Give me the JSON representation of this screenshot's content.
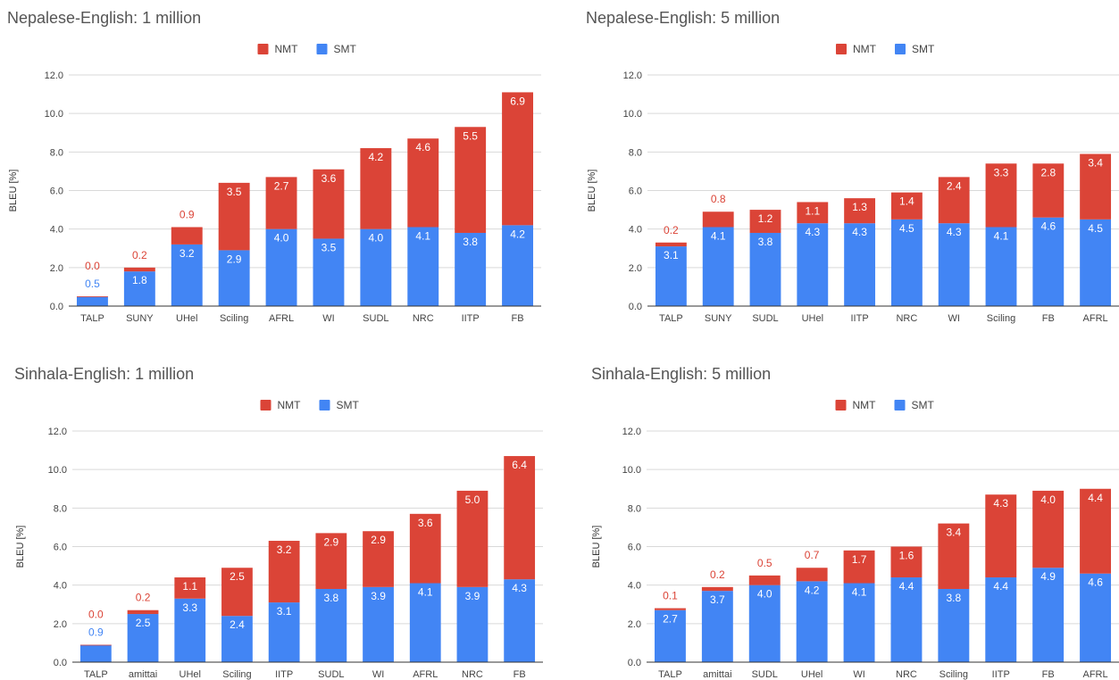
{
  "colors": {
    "smt": "#4285F4",
    "nmt": "#DB4437",
    "grid": "#D9D9D9",
    "axis": "#333333",
    "title": "#555555"
  },
  "chart_data": [
    {
      "type": "bar",
      "stacked": true,
      "title": "Nepalese-English: 1 million",
      "xlabel": "",
      "ylabel": "BLEU [%]",
      "ylim": [
        0,
        12
      ],
      "yticks": [
        "0.0",
        "2.0",
        "4.0",
        "6.0",
        "8.0",
        "10.0",
        "12.0"
      ],
      "grid": true,
      "legend": "top-center",
      "categories": [
        "TALP",
        "SUNY",
        "UHel",
        "Sciling",
        "AFRL",
        "WI",
        "SUDL",
        "NRC",
        "IITP",
        "FB"
      ],
      "series": [
        {
          "name": "SMT",
          "values": [
            0.5,
            1.8,
            3.2,
            2.9,
            4.0,
            3.5,
            4.0,
            4.1,
            3.8,
            4.2
          ],
          "labels": [
            "0.5",
            "1.8",
            "3.2",
            "2.9",
            "4.0",
            "3.5",
            "4.0",
            "4.1",
            "3.8",
            "4.2"
          ]
        },
        {
          "name": "NMT",
          "values": [
            0.0,
            0.2,
            0.9,
            3.5,
            2.7,
            3.6,
            4.2,
            4.6,
            5.5,
            6.9
          ],
          "labels": [
            "0.0",
            "0.2",
            "0.9",
            "3.5",
            "2.7",
            "3.6",
            "4.2",
            "4.6",
            "5.5",
            "6.9"
          ]
        }
      ]
    },
    {
      "type": "bar",
      "stacked": true,
      "title": "Nepalese-English: 5 million",
      "xlabel": "",
      "ylabel": "BLEU [%]",
      "ylim": [
        0,
        12
      ],
      "yticks": [
        "0.0",
        "2.0",
        "4.0",
        "6.0",
        "8.0",
        "10.0",
        "12.0"
      ],
      "grid": true,
      "legend": "top-center",
      "categories": [
        "TALP",
        "SUNY",
        "SUDL",
        "UHel",
        "IITP",
        "NRC",
        "WI",
        "Sciling",
        "FB",
        "AFRL"
      ],
      "series": [
        {
          "name": "SMT",
          "values": [
            3.1,
            4.1,
            3.8,
            4.3,
            4.3,
            4.5,
            4.3,
            4.1,
            4.6,
            4.5
          ],
          "labels": [
            "3.1",
            "4.1",
            "3.8",
            "4.3",
            "4.3",
            "4.5",
            "4.3",
            "4.1",
            "4.6",
            "4.5"
          ]
        },
        {
          "name": "NMT",
          "values": [
            0.2,
            0.8,
            1.2,
            1.1,
            1.3,
            1.4,
            2.4,
            3.3,
            2.8,
            3.4
          ],
          "labels": [
            "0.2",
            "0.8",
            "1.2",
            "1.1",
            "1.3",
            "1.4",
            "2.4",
            "3.3",
            "2.8",
            "3.4"
          ]
        }
      ]
    },
    {
      "type": "bar",
      "stacked": true,
      "title": "Sinhala-English: 1 million",
      "xlabel": "",
      "ylabel": "BLEU [%]",
      "ylim": [
        0,
        12
      ],
      "yticks": [
        "0.0",
        "2.0",
        "4.0",
        "6.0",
        "8.0",
        "10.0",
        "12.0"
      ],
      "grid": true,
      "legend": "top-center",
      "categories": [
        "TALP",
        "amittai",
        "UHel",
        "Sciling",
        "IITP",
        "SUDL",
        "WI",
        "AFRL",
        "NRC",
        "FB"
      ],
      "series": [
        {
          "name": "SMT",
          "values": [
            0.9,
            2.5,
            3.3,
            2.4,
            3.1,
            3.8,
            3.9,
            4.1,
            3.9,
            4.3
          ],
          "labels": [
            "0.9",
            "2.5",
            "3.3",
            "2.4",
            "3.1",
            "3.8",
            "3.9",
            "4.1",
            "3.9",
            "4.3"
          ]
        },
        {
          "name": "NMT",
          "values": [
            0.0,
            0.2,
            1.1,
            2.5,
            3.2,
            2.9,
            2.9,
            3.6,
            5.0,
            6.4
          ],
          "labels": [
            "0.0",
            "0.2",
            "1.1",
            "2.5",
            "3.2",
            "2.9",
            "2.9",
            "3.6",
            "5.0",
            "6.4"
          ]
        }
      ]
    },
    {
      "type": "bar",
      "stacked": true,
      "title": "Sinhala-English: 5 million",
      "xlabel": "",
      "ylabel": "BLEU [%]",
      "ylim": [
        0,
        12
      ],
      "yticks": [
        "0.0",
        "2.0",
        "4.0",
        "6.0",
        "8.0",
        "10.0",
        "12.0"
      ],
      "grid": true,
      "legend": "top-center",
      "categories": [
        "TALP",
        "amittai",
        "SUDL",
        "UHel",
        "WI",
        "NRC",
        "Sciling",
        "IITP",
        "FB",
        "AFRL"
      ],
      "series": [
        {
          "name": "SMT",
          "values": [
            2.7,
            3.7,
            4.0,
            4.2,
            4.1,
            4.4,
            3.8,
            4.4,
            4.9,
            4.6
          ],
          "labels": [
            "2.7",
            "3.7",
            "4.0",
            "4.2",
            "4.1",
            "4.4",
            "3.8",
            "4.4",
            "4.9",
            "4.6"
          ]
        },
        {
          "name": "NMT",
          "values": [
            0.1,
            0.2,
            0.5,
            0.7,
            1.7,
            1.6,
            3.4,
            4.3,
            4.0,
            4.4
          ],
          "labels": [
            "0.1",
            "0.2",
            "0.5",
            "0.7",
            "1.7",
            "1.6",
            "3.4",
            "4.3",
            "4.0",
            "4.4"
          ]
        }
      ]
    }
  ]
}
